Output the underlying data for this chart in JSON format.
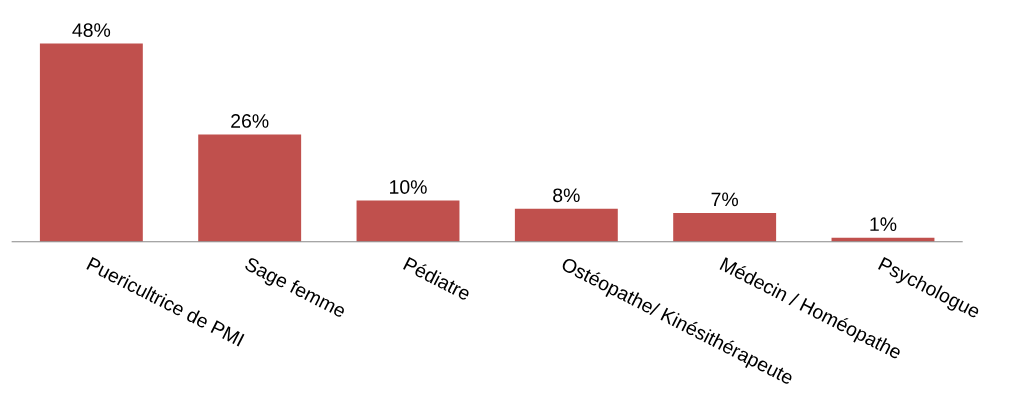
{
  "chart_data": {
    "type": "bar",
    "categories": [
      "Puericultrice de PMI",
      "Sage femme",
      "Pédiatre",
      "Ostéopathe/ Kinésithérapeute",
      "Médecin / Homéopathe",
      "Psychologue"
    ],
    "values": [
      48,
      26,
      10,
      8,
      7,
      1
    ],
    "value_labels": [
      "48%",
      "26%",
      "10%",
      "8%",
      "7%",
      "1%"
    ],
    "color": "#c0504d",
    "grid": false,
    "legend": false
  }
}
